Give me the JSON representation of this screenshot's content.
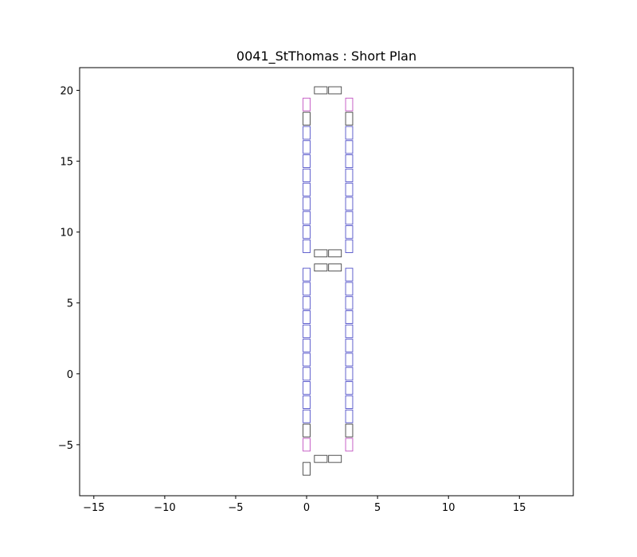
{
  "chart_data": {
    "type": "scatter",
    "title": "0041_StThomas : Short Plan",
    "xlabel": "",
    "ylabel": "",
    "xlim": [
      -16.0,
      18.8
    ],
    "ylim": [
      -8.6,
      21.6
    ],
    "xticks": [
      -15,
      -10,
      -5,
      0,
      5,
      10,
      15
    ],
    "yticks": [
      -5,
      0,
      5,
      10,
      15,
      20
    ],
    "xtick_labels": [
      "−15",
      "−10",
      "−5",
      "0",
      "5",
      "10",
      "15"
    ],
    "ytick_labels": [
      "−5",
      "0",
      "5",
      "10",
      "15",
      "20"
    ],
    "grid": false,
    "legend": "none",
    "colors": {
      "blue": "#5050c8",
      "magenta": "#c050c0",
      "dark": "#404040"
    },
    "mark_size": {
      "column_seat": {
        "width": 0.5,
        "height": 0.9
      },
      "row_seat": {
        "width": 0.9,
        "height": 0.5
      }
    },
    "series": [
      {
        "kind": "column_seat",
        "color": "blue",
        "points": [
          [
            0,
            9.0
          ],
          [
            0,
            10.0
          ],
          [
            0,
            11.0
          ],
          [
            0,
            12.0
          ],
          [
            0,
            13.0
          ],
          [
            0,
            14.0
          ],
          [
            0,
            15.0
          ],
          [
            0,
            16.0
          ],
          [
            0,
            17.0
          ],
          [
            3,
            9.0
          ],
          [
            3,
            10.0
          ],
          [
            3,
            11.0
          ],
          [
            3,
            12.0
          ],
          [
            3,
            13.0
          ],
          [
            3,
            14.0
          ],
          [
            3,
            15.0
          ],
          [
            3,
            16.0
          ],
          [
            3,
            17.0
          ],
          [
            0,
            -3.0
          ],
          [
            0,
            -2.0
          ],
          [
            0,
            -1.0
          ],
          [
            0,
            0.0
          ],
          [
            0,
            1.0
          ],
          [
            0,
            2.0
          ],
          [
            0,
            3.0
          ],
          [
            0,
            4.0
          ],
          [
            0,
            5.0
          ],
          [
            0,
            6.0
          ],
          [
            0,
            7.0
          ],
          [
            3,
            -3.0
          ],
          [
            3,
            -2.0
          ],
          [
            3,
            -1.0
          ],
          [
            3,
            0.0
          ],
          [
            3,
            1.0
          ],
          [
            3,
            2.0
          ],
          [
            3,
            3.0
          ],
          [
            3,
            4.0
          ],
          [
            3,
            5.0
          ],
          [
            3,
            6.0
          ],
          [
            3,
            7.0
          ]
        ]
      },
      {
        "kind": "column_seat",
        "color": "magenta",
        "points": [
          [
            0,
            19.0
          ],
          [
            3,
            19.0
          ],
          [
            0,
            -5.0
          ],
          [
            3,
            -5.0
          ]
        ]
      },
      {
        "kind": "column_seat",
        "color": "dark",
        "points": [
          [
            0,
            18.0
          ],
          [
            3,
            18.0
          ],
          [
            0,
            -4.0
          ],
          [
            3,
            -4.0
          ],
          [
            0,
            -6.7
          ]
        ]
      },
      {
        "kind": "row_seat",
        "color": "dark",
        "points": [
          [
            1.0,
            20.0
          ],
          [
            2.0,
            20.0
          ],
          [
            1.0,
            8.5
          ],
          [
            2.0,
            8.5
          ],
          [
            1.0,
            7.5
          ],
          [
            2.0,
            7.5
          ],
          [
            1.0,
            -6.0
          ],
          [
            2.0,
            -6.0
          ]
        ]
      }
    ]
  }
}
